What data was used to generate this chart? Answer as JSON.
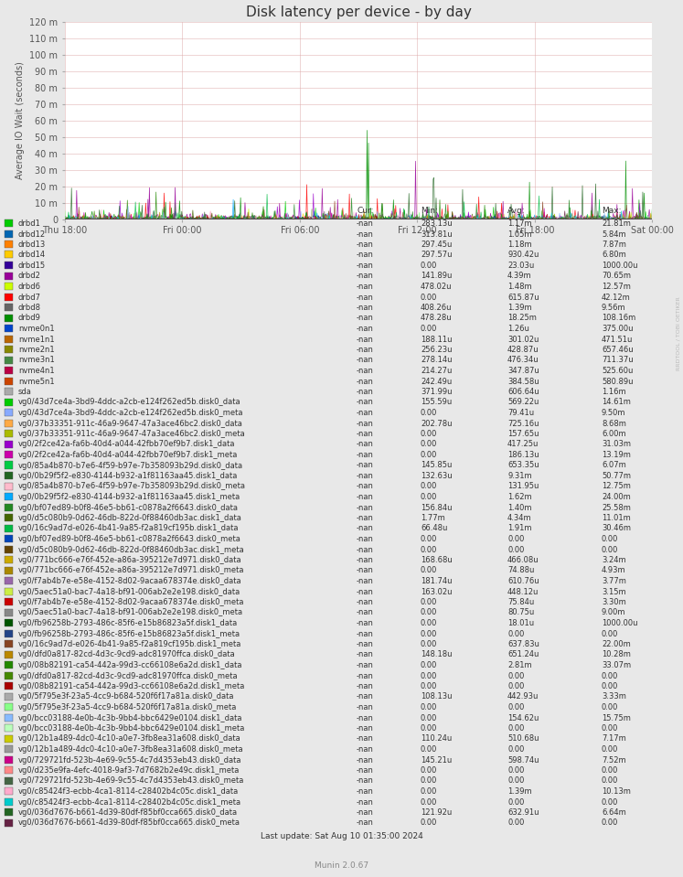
{
  "title": "Disk latency per device - by day",
  "ylabel": "Average IO Wait (seconds)",
  "watermark": "RRDTOOL / TOBI OETIKER",
  "footer": "Munin 2.0.67",
  "last_update": "Last update: Sat Aug 10 01:35:00 2024",
  "ylim": [
    0,
    120
  ],
  "yticks": [
    0,
    10,
    20,
    30,
    40,
    50,
    60,
    70,
    80,
    90,
    100,
    110,
    120
  ],
  "ytick_labels": [
    "0",
    "10 m",
    "20 m",
    "30 m",
    "40 m",
    "50 m",
    "60 m",
    "70 m",
    "80 m",
    "90 m",
    "100 m",
    "110 m",
    "120 m"
  ],
  "xtick_labels": [
    "Thu 18:00",
    "Fri 00:00",
    "Fri 06:00",
    "Fri 12:00",
    "Fri 18:00",
    "Sat 00:00"
  ],
  "bg_color": "#e8e8e8",
  "plot_bg_color": "#ffffff",
  "grid_color": "#ddaaaa",
  "title_color": "#333333",
  "legend": [
    {
      "label": "drbd1",
      "color": "#00cc00",
      "cur": "-nan",
      "min": "283.13u",
      "avg": "1.17m",
      "max": "21.81m"
    },
    {
      "label": "drbd12",
      "color": "#0066b3",
      "cur": "-nan",
      "min": "313.81u",
      "avg": "1.05m",
      "max": "5.84m"
    },
    {
      "label": "drbd13",
      "color": "#ff8000",
      "cur": "-nan",
      "min": "297.45u",
      "avg": "1.18m",
      "max": "7.87m"
    },
    {
      "label": "drbd14",
      "color": "#ffcc00",
      "cur": "-nan",
      "min": "297.57u",
      "avg": "930.42u",
      "max": "6.80m"
    },
    {
      "label": "drbd15",
      "color": "#330099",
      "cur": "-nan",
      "min": "0.00",
      "avg": "23.03u",
      "max": "1000.00u"
    },
    {
      "label": "drbd2",
      "color": "#990099",
      "cur": "-nan",
      "min": "141.89u",
      "avg": "4.39m",
      "max": "70.65m"
    },
    {
      "label": "drbd6",
      "color": "#ccff00",
      "cur": "-nan",
      "min": "478.02u",
      "avg": "1.48m",
      "max": "12.57m"
    },
    {
      "label": "drbd7",
      "color": "#ff0000",
      "cur": "-nan",
      "min": "0.00",
      "avg": "615.87u",
      "max": "42.12m"
    },
    {
      "label": "drbd8",
      "color": "#666666",
      "cur": "-nan",
      "min": "408.26u",
      "avg": "1.39m",
      "max": "9.56m"
    },
    {
      "label": "drbd9",
      "color": "#008f00",
      "cur": "-nan",
      "min": "478.28u",
      "avg": "18.25m",
      "max": "108.16m"
    },
    {
      "label": "nvme0n1",
      "color": "#0044cc",
      "cur": "-nan",
      "min": "0.00",
      "avg": "1.26u",
      "max": "375.00u"
    },
    {
      "label": "nvme1n1",
      "color": "#bb6600",
      "cur": "-nan",
      "min": "188.11u",
      "avg": "301.02u",
      "max": "471.51u"
    },
    {
      "label": "nvme2n1",
      "color": "#888800",
      "cur": "-nan",
      "min": "256.23u",
      "avg": "428.87u",
      "max": "657.46u"
    },
    {
      "label": "nvme3n1",
      "color": "#448844",
      "cur": "-nan",
      "min": "278.14u",
      "avg": "476.34u",
      "max": "711.37u"
    },
    {
      "label": "nvme4n1",
      "color": "#bb0044",
      "cur": "-nan",
      "min": "214.27u",
      "avg": "347.87u",
      "max": "525.60u"
    },
    {
      "label": "nvme5n1",
      "color": "#cc4400",
      "cur": "-nan",
      "min": "242.49u",
      "avg": "384.58u",
      "max": "580.89u"
    },
    {
      "label": "sda",
      "color": "#aaaaaa",
      "cur": "-nan",
      "min": "371.99u",
      "avg": "606.64u",
      "max": "1.16m"
    },
    {
      "label": "vg0/43d7ce4a-3bd9-4ddc-a2cb-e124f262ed5b.disk0_data",
      "color": "#00cc00",
      "cur": "-nan",
      "min": "155.59u",
      "avg": "569.22u",
      "max": "14.61m"
    },
    {
      "label": "vg0/43d7ce4a-3bd9-4ddc-a2cb-e124f262ed5b.disk0_meta",
      "color": "#88aaff",
      "cur": "-nan",
      "min": "0.00",
      "avg": "79.41u",
      "max": "9.50m"
    },
    {
      "label": "vg0/37b33351-911c-46a9-9647-47a3ace46bc2.disk0_data",
      "color": "#ffaa44",
      "cur": "-nan",
      "min": "202.78u",
      "avg": "725.16u",
      "max": "8.68m"
    },
    {
      "label": "vg0/37b33351-911c-46a9-9647-47a3ace46bc2.disk0_meta",
      "color": "#aabb00",
      "cur": "-nan",
      "min": "0.00",
      "avg": "157.65u",
      "max": "6.00m"
    },
    {
      "label": "vg0/2f2ce42a-fa6b-40d4-a044-42fbb70ef9b7.disk1_data",
      "color": "#9900cc",
      "cur": "-nan",
      "min": "0.00",
      "avg": "417.25u",
      "max": "31.03m"
    },
    {
      "label": "vg0/2f2ce42a-fa6b-40d4-a044-42fbb70ef9b7.disk1_meta",
      "color": "#cc00aa",
      "cur": "-nan",
      "min": "0.00",
      "avg": "186.13u",
      "max": "13.19m"
    },
    {
      "label": "vg0/85a4b870-b7e6-4f59-b97e-7b358093b29d.disk0_data",
      "color": "#00cc44",
      "cur": "-nan",
      "min": "145.85u",
      "avg": "653.35u",
      "max": "6.07m"
    },
    {
      "label": "vg0/0b29f5f2-e830-4144-b932-a1f81163aa45.disk1_data",
      "color": "#226622",
      "cur": "-nan",
      "min": "132.63u",
      "avg": "9.31m",
      "max": "50.77m"
    },
    {
      "label": "vg0/85a4b870-b7e6-4f59-b97e-7b358093b29d.disk0_meta",
      "color": "#ffbbcc",
      "cur": "-nan",
      "min": "0.00",
      "avg": "131.95u",
      "max": "12.75m"
    },
    {
      "label": "vg0/0b29f5f2-e830-4144-b932-a1f81163aa45.disk1_meta",
      "color": "#00aaff",
      "cur": "-nan",
      "min": "0.00",
      "avg": "1.62m",
      "max": "24.00m"
    },
    {
      "label": "vg0/bf07ed89-b0f8-46e5-bb61-c0878a2f6643.disk0_data",
      "color": "#228822",
      "cur": "-nan",
      "min": "156.84u",
      "avg": "1.40m",
      "max": "25.58m"
    },
    {
      "label": "vg0/d5c080b9-0d62-46db-822d-0f88460db3ac.disk1_data",
      "color": "#446600",
      "cur": "-nan",
      "min": "1.77m",
      "avg": "4.34m",
      "max": "11.01m"
    },
    {
      "label": "vg0/16c9ad7d-e026-4b41-9a85-f2a819cf195b.disk1_data",
      "color": "#00bb44",
      "cur": "-nan",
      "min": "66.48u",
      "avg": "1.91m",
      "max": "30.46m"
    },
    {
      "label": "vg0/bf07ed89-b0f8-46e5-bb61-c0878a2f6643.disk0_meta",
      "color": "#0044bb",
      "cur": "-nan",
      "min": "0.00",
      "avg": "0.00",
      "max": "0.00"
    },
    {
      "label": "vg0/d5c080b9-0d62-46db-822d-0f88460db3ac.disk1_meta",
      "color": "#664400",
      "cur": "-nan",
      "min": "0.00",
      "avg": "0.00",
      "max": "0.00"
    },
    {
      "label": "vg0/771bc666-e76f-452e-a86a-395212e7d971.disk0_data",
      "color": "#ccaa00",
      "cur": "-nan",
      "min": "168.68u",
      "avg": "466.08u",
      "max": "3.24m"
    },
    {
      "label": "vg0/771bc666-e76f-452e-a86a-395212e7d971.disk0_meta",
      "color": "#aa8800",
      "cur": "-nan",
      "min": "0.00",
      "avg": "74.88u",
      "max": "4.93m"
    },
    {
      "label": "vg0/f7ab4b7e-e58e-4152-8d02-9acaa678374e.disk0_data",
      "color": "#9966aa",
      "cur": "-nan",
      "min": "181.74u",
      "avg": "610.76u",
      "max": "3.77m"
    },
    {
      "label": "vg0/5aec51a0-bac7-4a18-bf91-006ab2e2e198.disk0_data",
      "color": "#ccee44",
      "cur": "-nan",
      "min": "163.02u",
      "avg": "448.12u",
      "max": "3.15m"
    },
    {
      "label": "vg0/f7ab4b7e-e58e-4152-8d02-9acaa678374e.disk0_meta",
      "color": "#cc0000",
      "cur": "-nan",
      "min": "0.00",
      "avg": "75.84u",
      "max": "3.30m"
    },
    {
      "label": "vg0/5aec51a0-bac7-4a18-bf91-006ab2e2e198.disk0_meta",
      "color": "#888888",
      "cur": "-nan",
      "min": "0.00",
      "avg": "80.75u",
      "max": "9.00m"
    },
    {
      "label": "vg0/fb96258b-2793-486c-85f6-e15b86823a5f.disk1_data",
      "color": "#005500",
      "cur": "-nan",
      "min": "0.00",
      "avg": "18.01u",
      "max": "1000.00u"
    },
    {
      "label": "vg0/fb96258b-2793-486c-85f6-e15b86823a5f.disk1_meta",
      "color": "#224488",
      "cur": "-nan",
      "min": "0.00",
      "avg": "0.00",
      "max": "0.00"
    },
    {
      "label": "vg0/16c9ad7d-e026-4b41-9a85-f2a819cf195b.disk1_meta",
      "color": "#884422",
      "cur": "-nan",
      "min": "0.00",
      "avg": "637.83u",
      "max": "22.00m"
    },
    {
      "label": "vg0/dfd0a817-82cd-4d3c-9cd9-adc81970ffca.disk0_data",
      "color": "#bb8800",
      "cur": "-nan",
      "min": "148.18u",
      "avg": "651.24u",
      "max": "10.28m"
    },
    {
      "label": "vg0/08b82191-ca54-442a-99d3-cc66108e6a2d.disk1_data",
      "color": "#228800",
      "cur": "-nan",
      "min": "0.00",
      "avg": "2.81m",
      "max": "33.07m"
    },
    {
      "label": "vg0/dfd0a817-82cd-4d3c-9cd9-adc81970ffca.disk0_meta",
      "color": "#448800",
      "cur": "-nan",
      "min": "0.00",
      "avg": "0.00",
      "max": "0.00"
    },
    {
      "label": "vg0/08b82191-ca54-442a-99d3-cc66108e6a2d.disk1_meta",
      "color": "#aa0000",
      "cur": "-nan",
      "min": "0.00",
      "avg": "0.00",
      "max": "0.00"
    },
    {
      "label": "vg0/5f795e3f-23a5-4cc9-b684-520f6f17a81a.disk0_data",
      "color": "#aaaaaa",
      "cur": "-nan",
      "min": "108.13u",
      "avg": "442.93u",
      "max": "3.33m"
    },
    {
      "label": "vg0/5f795e3f-23a5-4cc9-b684-520f6f17a81a.disk0_meta",
      "color": "#88ff88",
      "cur": "-nan",
      "min": "0.00",
      "avg": "0.00",
      "max": "0.00"
    },
    {
      "label": "vg0/bcc03188-4e0b-4c3b-9bb4-bbc6429e0104.disk1_data",
      "color": "#88bbff",
      "cur": "-nan",
      "min": "0.00",
      "avg": "154.62u",
      "max": "15.75m"
    },
    {
      "label": "vg0/bcc03188-4e0b-4c3b-9bb4-bbc6429e0104.disk1_meta",
      "color": "#bbffbb",
      "cur": "-nan",
      "min": "0.00",
      "avg": "0.00",
      "max": "0.00"
    },
    {
      "label": "vg0/12b1a489-4dc0-4c10-a0e7-3fb8ea31a608.disk0_data",
      "color": "#cccc00",
      "cur": "-nan",
      "min": "110.24u",
      "avg": "510.68u",
      "max": "7.17m"
    },
    {
      "label": "vg0/12b1a489-4dc0-4c10-a0e7-3fb8ea31a608.disk0_meta",
      "color": "#999999",
      "cur": "-nan",
      "min": "0.00",
      "avg": "0.00",
      "max": "0.00"
    },
    {
      "label": "vg0/729721fd-523b-4e69-9c55-4c7d4353eb43.disk0_data",
      "color": "#cc0088",
      "cur": "-nan",
      "min": "145.21u",
      "avg": "598.74u",
      "max": "7.52m"
    },
    {
      "label": "vg0/d235e9fa-4efc-4018-9af3-7d7682b2e49c.disk1_meta",
      "color": "#ff8888",
      "cur": "-nan",
      "min": "0.00",
      "avg": "0.00",
      "max": "0.00"
    },
    {
      "label": "vg0/729721fd-523b-4e69-9c55-4c7d4353eb43.disk0_meta",
      "color": "#446644",
      "cur": "-nan",
      "min": "0.00",
      "avg": "0.00",
      "max": "0.00"
    },
    {
      "label": "vg0/c85424f3-ecbb-4ca1-8114-c28402b4c05c.disk1_data",
      "color": "#ffaacc",
      "cur": "-nan",
      "min": "0.00",
      "avg": "1.39m",
      "max": "10.13m"
    },
    {
      "label": "vg0/c85424f3-ecbb-4ca1-8114-c28402b4c05c.disk1_meta",
      "color": "#00cccc",
      "cur": "-nan",
      "min": "0.00",
      "avg": "0.00",
      "max": "0.00"
    },
    {
      "label": "vg0/036d7676-b661-4d39-80df-f85bf0cca665.disk0_data",
      "color": "#226622",
      "cur": "-nan",
      "min": "121.92u",
      "avg": "632.91u",
      "max": "6.64m"
    },
    {
      "label": "vg0/036d7676-b661-4d39-80df-f85bf0cca665.disk0_meta",
      "color": "#662244",
      "cur": "-nan",
      "min": "0.00",
      "avg": "0.00",
      "max": "0.00"
    }
  ]
}
